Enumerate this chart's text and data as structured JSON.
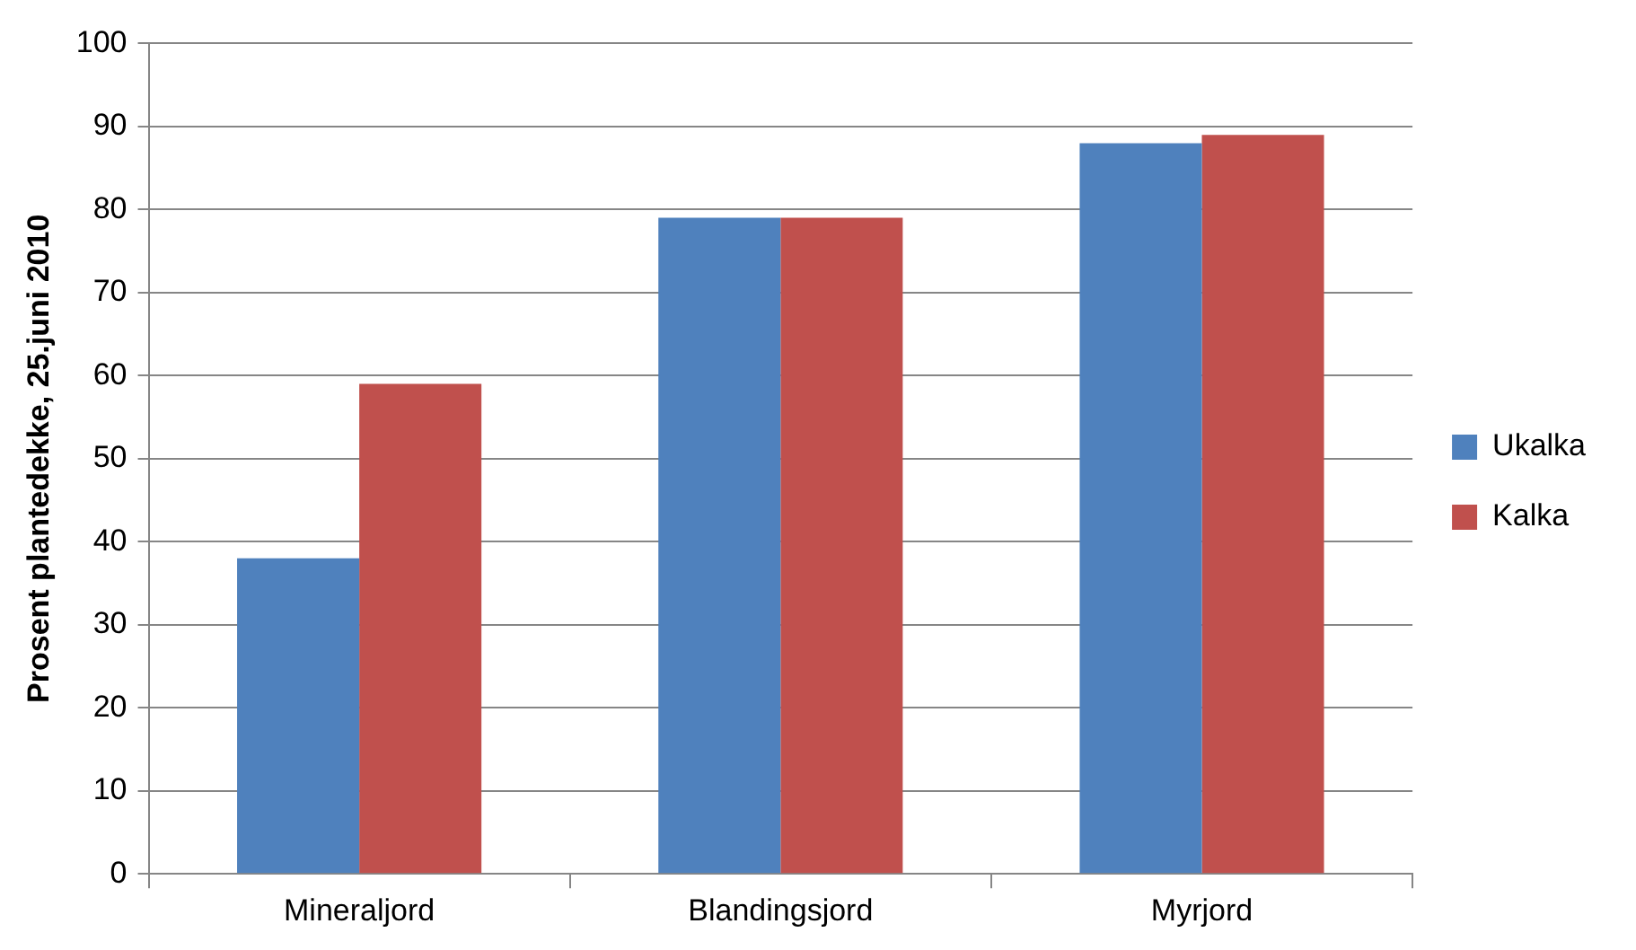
{
  "chart_data": {
    "type": "bar",
    "ylabel": "Prosent plantedekke, 25.juni 2010",
    "categories": [
      "Mineraljord",
      "Blandingsjord",
      "Myrjord"
    ],
    "series": [
      {
        "name": "Ukalka",
        "color": "#4f81bd",
        "values": [
          38,
          79,
          88
        ]
      },
      {
        "name": "Kalka",
        "color": "#c0504d",
        "values": [
          59,
          79,
          89
        ]
      }
    ],
    "ylim": [
      0,
      100
    ],
    "yticks": [
      0,
      10,
      20,
      30,
      40,
      50,
      60,
      70,
      80,
      90,
      100
    ],
    "grid": "y",
    "legend": "right"
  }
}
